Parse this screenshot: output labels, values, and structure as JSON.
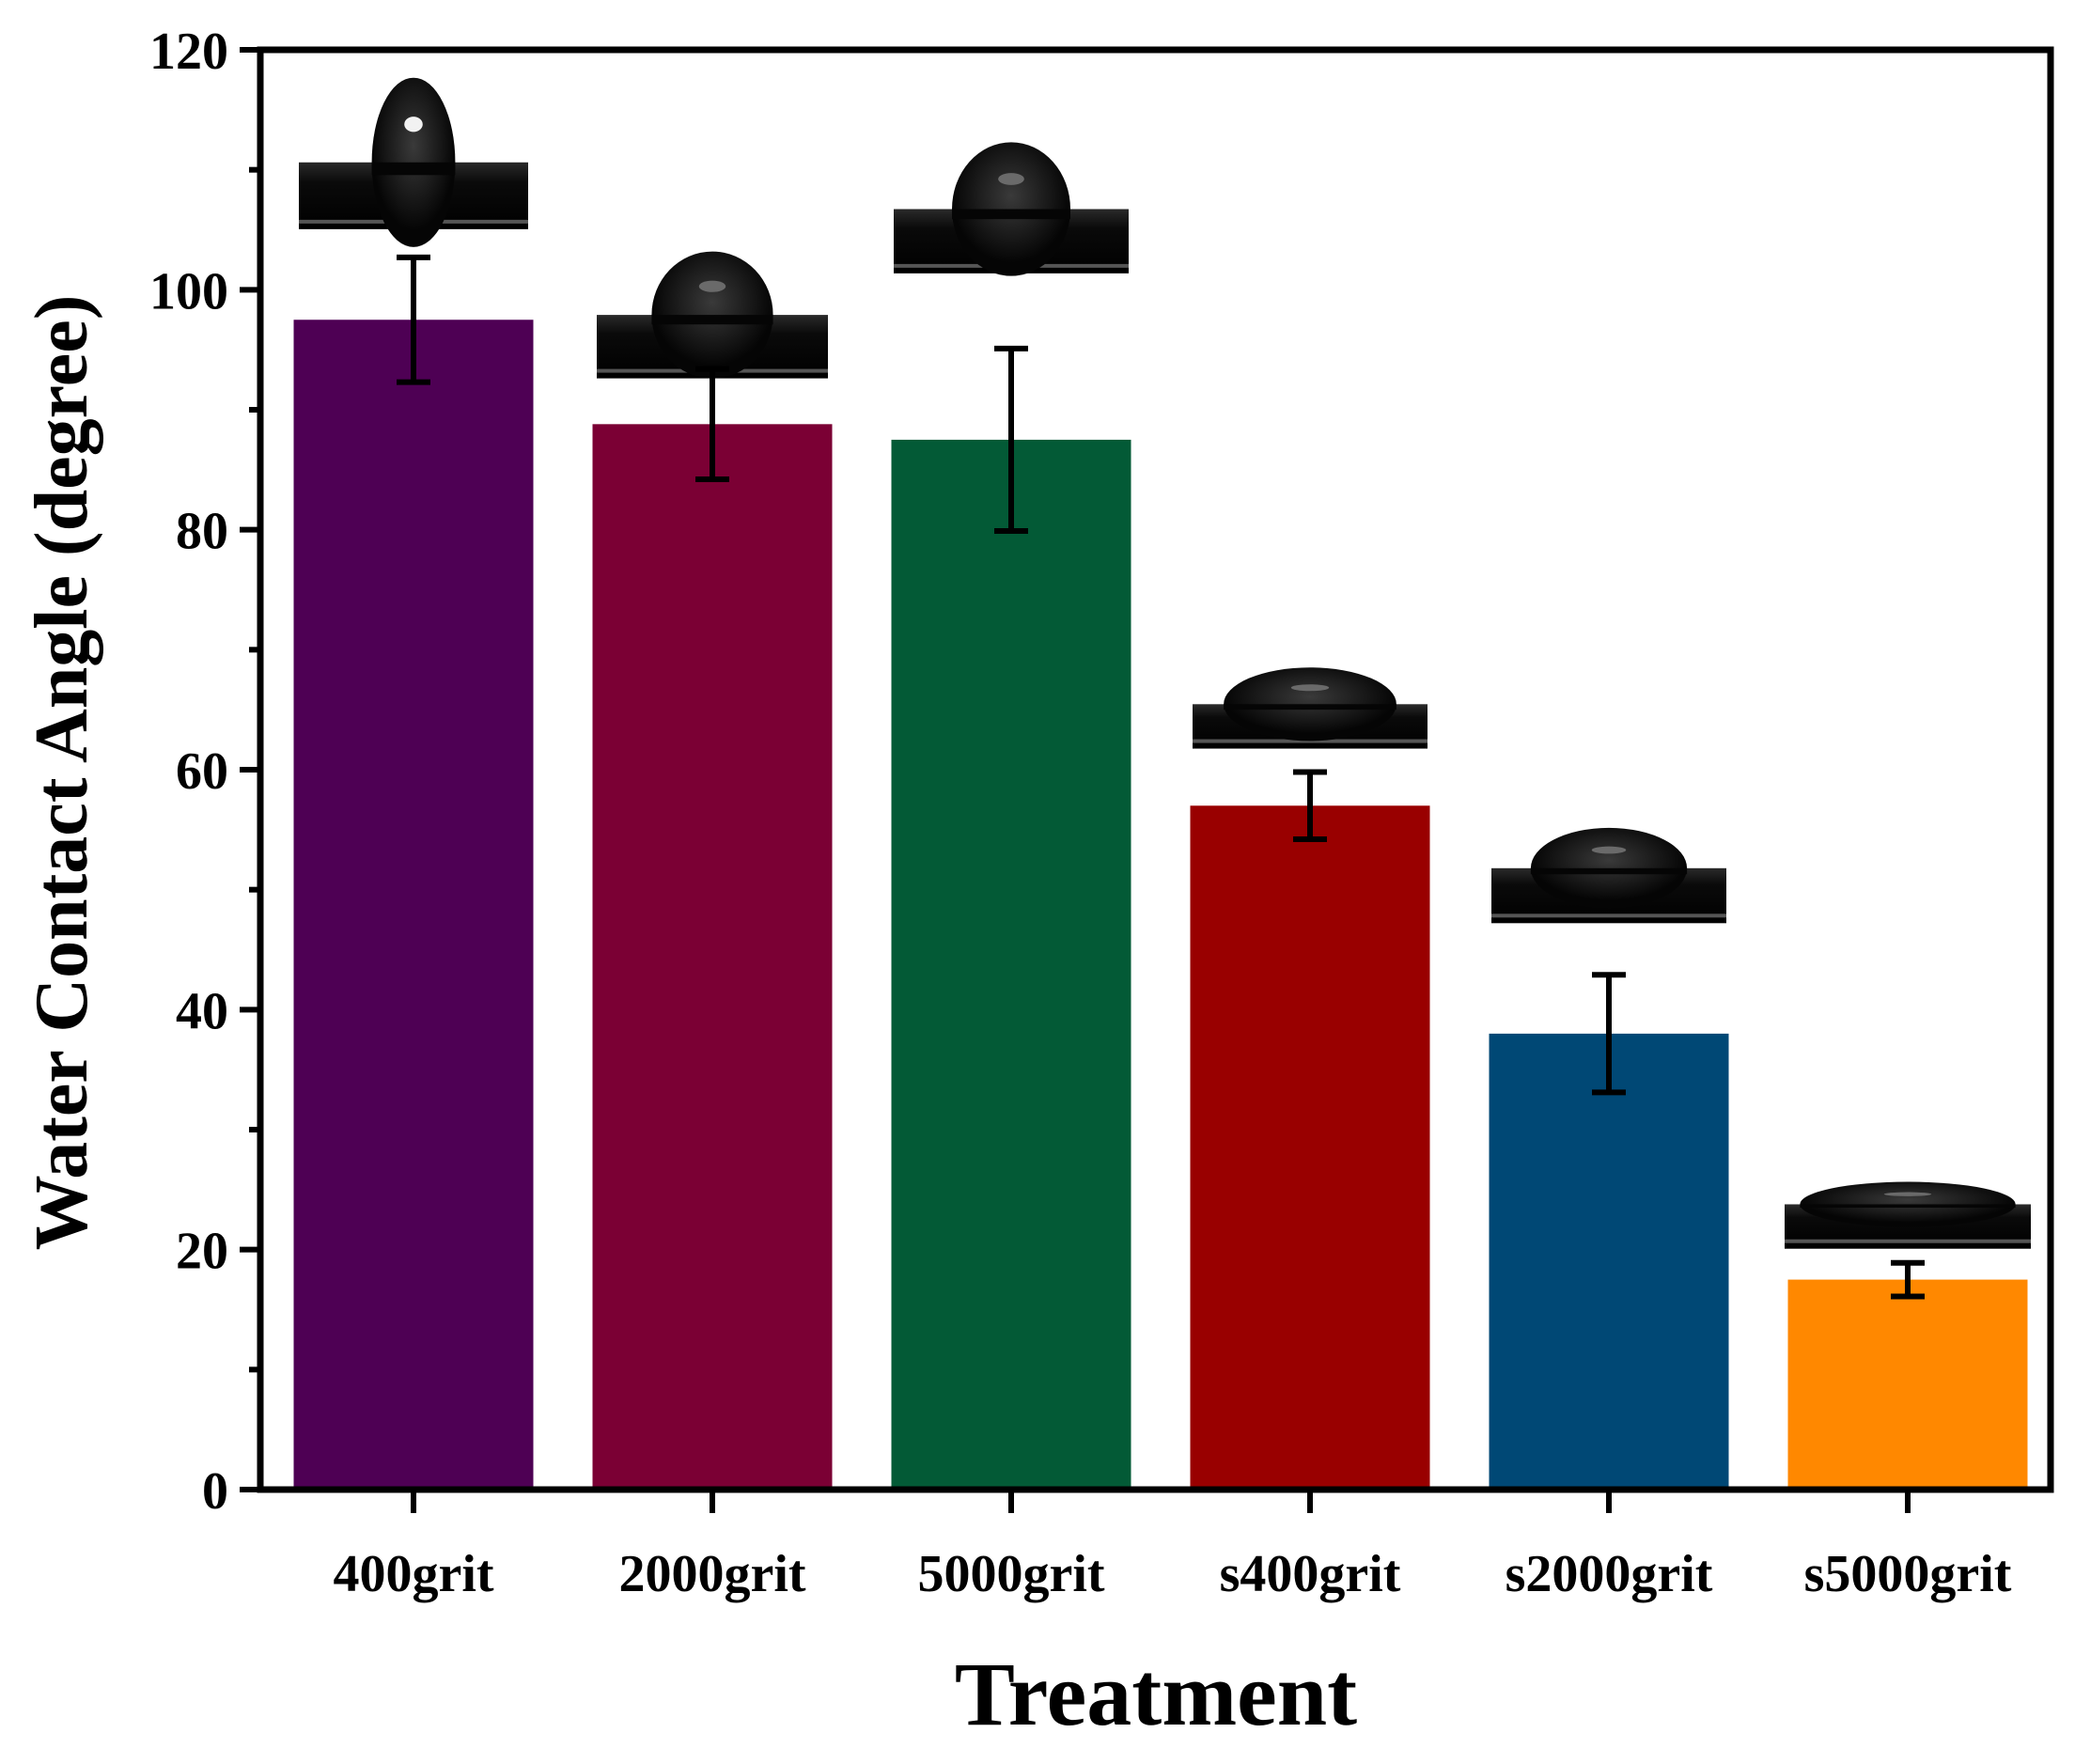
{
  "chart_data": {
    "type": "bar",
    "title": "",
    "xlabel": "Treatment",
    "ylabel": "Water Contact Angle (degree)",
    "ylim": [
      0,
      120
    ],
    "yticks": [
      0,
      20,
      40,
      60,
      80,
      100,
      120
    ],
    "grid": false,
    "categories": [
      "400grit",
      "2000grit",
      "5000grit",
      "s400grit",
      "s2000grit",
      "s5000grit"
    ],
    "values": [
      97.5,
      88.8,
      87.5,
      57.0,
      38.0,
      17.5
    ],
    "errors": [
      5.2,
      4.6,
      7.6,
      2.8,
      4.9,
      1.4
    ],
    "colors": [
      "#4e0054",
      "#7b0034",
      "#035a36",
      "#990000",
      "#004875",
      "#ff8800"
    ],
    "insets": [
      "droplet-image",
      "droplet-image",
      "droplet-image",
      "droplet-image",
      "droplet-image",
      "droplet-image"
    ]
  }
}
